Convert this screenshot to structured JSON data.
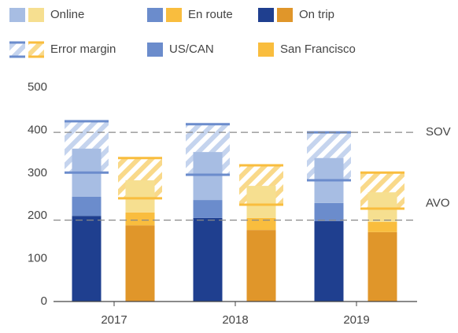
{
  "chart_data": {
    "type": "grouped_stacked_bar",
    "categories": [
      2017,
      2018,
      2019
    ],
    "stack_names": [
      "On trip",
      "En route",
      "Online"
    ],
    "error_label": "Error margin",
    "groups": [
      {
        "name": "US/CAN",
        "color": "#6b8ccc",
        "hatch_color": "#c5d4ee",
        "segments": [
          {
            "color": "#1f3f8f",
            "values": [
              200,
              195,
              188
            ]
          },
          {
            "color": "#6b8ccc",
            "values": [
              45,
              42,
              42
            ]
          },
          {
            "color": "#a7bde3",
            "values": [
              112,
              112,
              105
            ]
          }
        ],
        "error_low": [
          301,
          296,
          283
        ],
        "error_high": [
          421,
          414,
          395
        ]
      },
      {
        "name": "San Francisco",
        "color": "#f9bd3e",
        "hatch_color": "#f9d98a",
        "segments": [
          {
            "color": "#e0962a",
            "values": [
              178,
              167,
              162
            ]
          },
          {
            "color": "#f9bd3e",
            "values": [
              30,
              28,
              24
            ]
          },
          {
            "color": "#f6df90",
            "values": [
              75,
              75,
              69
            ]
          }
        ],
        "error_low": [
          241,
          226,
          217
        ],
        "error_high": [
          335,
          318,
          301
        ]
      }
    ],
    "reference_lines": [
      {
        "label": "SOV",
        "value": 395
      },
      {
        "label": "AVO",
        "value": 190
      }
    ],
    "ylim": [
      0,
      500
    ],
    "yticks": [
      0,
      100,
      200,
      300,
      400,
      500
    ]
  }
}
